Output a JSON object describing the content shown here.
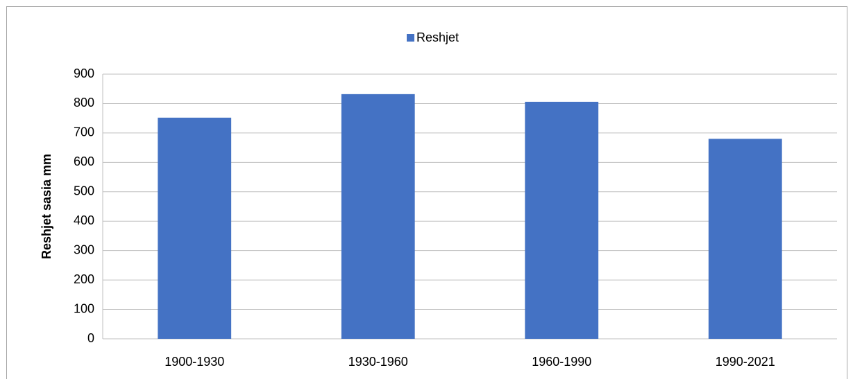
{
  "chart_data": {
    "type": "bar",
    "y_label": "Reshjet sasia mm",
    "categories": [
      "1900-1930",
      "1930-1960",
      "1960-1990",
      "1990-2021"
    ],
    "series": [
      {
        "name": "Reshjet",
        "color": "#4472c4",
        "values": [
          752,
          832,
          806,
          680
        ]
      }
    ],
    "ylim": [
      0,
      900
    ],
    "yticks": [
      0,
      100,
      200,
      300,
      400,
      500,
      600,
      700,
      800,
      900
    ],
    "grid": true,
    "legend": "top"
  }
}
